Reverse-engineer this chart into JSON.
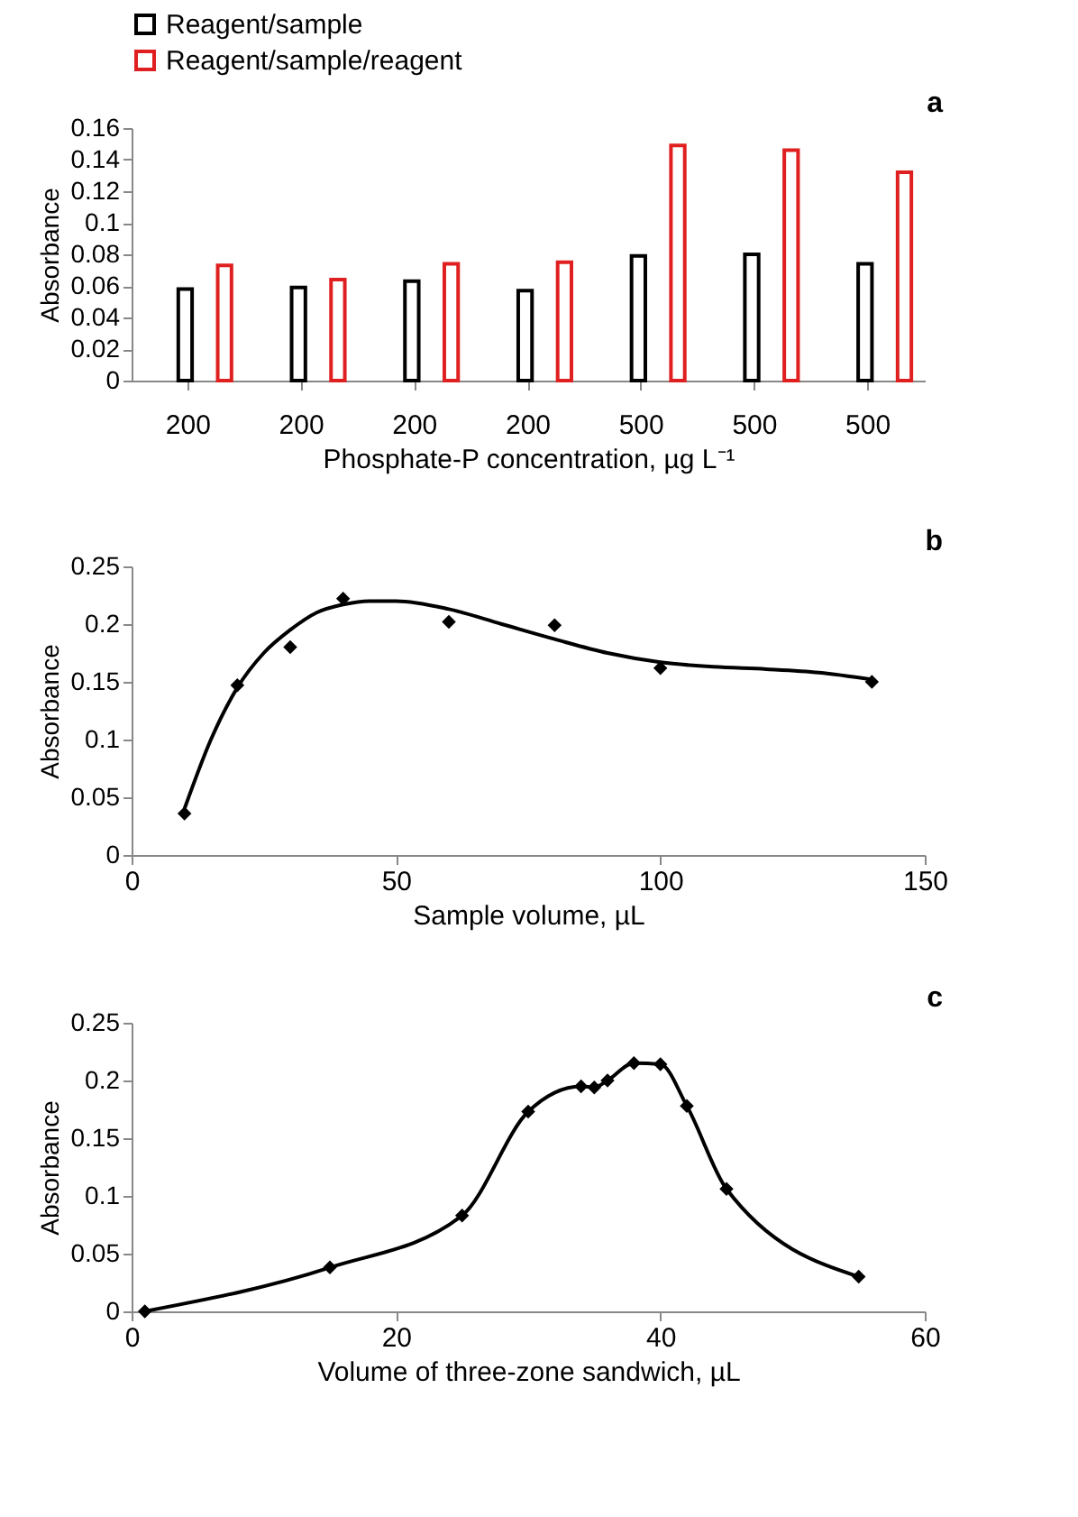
{
  "chart_data": [
    {
      "type": "bar",
      "annotations": [
        "a"
      ],
      "xlabel": "Phosphate-P concentration, µg L⁻¹",
      "ylabel": "Absorbance",
      "categories": [
        "200",
        "200",
        "200",
        "200",
        "500",
        "500",
        "500"
      ],
      "series": [
        {
          "name": "Reagent/sample",
          "color": "#000000",
          "values": [
            0.058,
            0.059,
            0.063,
            0.057,
            0.079,
            0.08,
            0.074
          ]
        },
        {
          "name": "Reagent/sample/reagent",
          "color": "#e02020",
          "values": [
            0.073,
            0.064,
            0.074,
            0.075,
            0.149,
            0.146,
            0.132
          ]
        }
      ],
      "ylim": [
        0,
        0.16
      ],
      "yticks": [
        0,
        0.02,
        0.04,
        0.06,
        0.08,
        0.1,
        0.12,
        0.14,
        0.16
      ],
      "legend": "top left"
    },
    {
      "type": "scatter",
      "annotations": [
        "b"
      ],
      "xlabel": "Sample volume, µL",
      "ylabel": "Absorbance",
      "marker": "diamond",
      "series": [
        {
          "color": "#000000",
          "x": [
            10,
            20,
            30,
            40,
            60,
            80,
            100,
            140
          ],
          "values": [
            0.036,
            0.147,
            0.18,
            0.222,
            0.202,
            0.199,
            0.162,
            0.15
          ]
        },
        {
          "type": "line",
          "marker": "none",
          "color": "#000000",
          "x": [
            10,
            15,
            20,
            25,
            30,
            35,
            40,
            45,
            50,
            60,
            70,
            80,
            90,
            100,
            110,
            120,
            130,
            140
          ],
          "values": [
            0.04,
            0.1,
            0.145,
            0.175,
            0.195,
            0.21,
            0.217,
            0.22,
            0.22,
            0.213,
            0.2,
            0.187,
            0.175,
            0.167,
            0.163,
            0.161,
            0.158,
            0.152
          ]
        }
      ],
      "xlim": [
        0,
        150
      ],
      "xticks": [
        0,
        50,
        100,
        150
      ],
      "ylim": [
        0,
        0.25
      ],
      "yticks": [
        0,
        0.05,
        0.1,
        0.15,
        0.2,
        0.25
      ]
    },
    {
      "type": "line",
      "annotations": [
        "c"
      ],
      "xlabel": "Volume of three-zone sandwich, µL",
      "ylabel": "Absorbance",
      "marker": "diamond",
      "series": [
        {
          "color": "#000000",
          "x": [
            1,
            15,
            25,
            30,
            34,
            35,
            36,
            38,
            40,
            42,
            45,
            55
          ],
          "values": [
            0,
            0.038,
            0.083,
            0.173,
            0.195,
            0.194,
            0.2,
            0.215,
            0.214,
            0.178,
            0.106,
            0.03
          ]
        }
      ],
      "xlim": [
        0,
        60
      ],
      "xticks": [
        0,
        20,
        40,
        60
      ],
      "ylim": [
        0,
        0.25
      ],
      "yticks": [
        0,
        0.05,
        0.1,
        0.15,
        0.2,
        0.25
      ]
    }
  ]
}
